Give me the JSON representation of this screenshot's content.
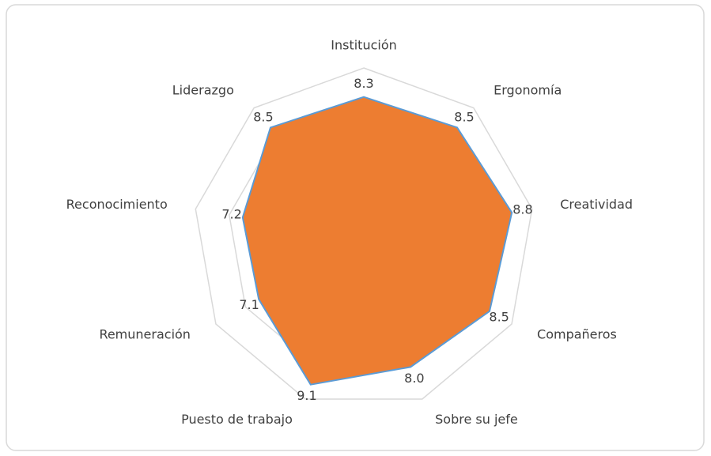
{
  "chart_data": {
    "type": "radar",
    "categories": [
      "Institución",
      "Ergonomía",
      "Creatividad",
      "Compañeros",
      "Sobre su jefe",
      "Puesto de trabajo",
      "Remuneración",
      "Reconocimiento",
      "Liderazgo"
    ],
    "values": [
      8.3,
      8.5,
      8.8,
      8.5,
      8.0,
      9.1,
      7.1,
      7.2,
      8.5
    ],
    "value_labels": [
      "8.3",
      "8.5",
      "8.8",
      "8.5",
      "8.0",
      "9.1",
      "7.1",
      "7.2",
      "8.5"
    ],
    "color": "#ed7d31",
    "edge_color": "#5b9bd5",
    "ylim": [
      0,
      10
    ],
    "yticks": [
      0,
      2,
      4,
      6,
      8,
      10
    ],
    "grid": true
  }
}
